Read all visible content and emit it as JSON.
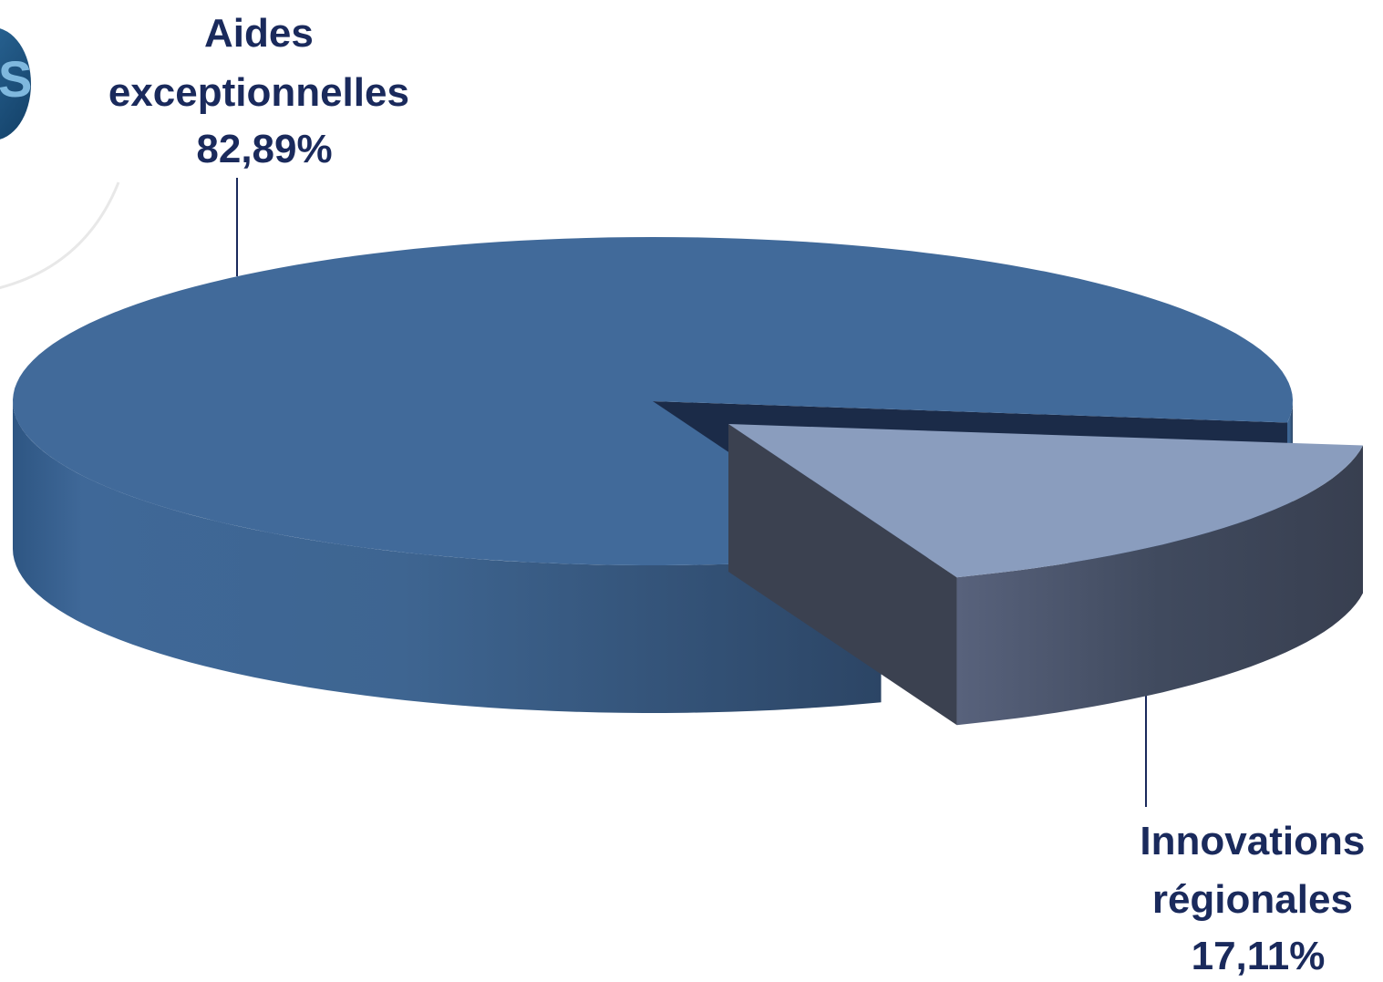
{
  "chart_data": {
    "type": "pie",
    "style": "3d-exploded",
    "slices": [
      {
        "name": "Aides exceptionnelles",
        "label_lines": [
          "Aides",
          "exceptionnelles"
        ],
        "value": 82.89,
        "value_label": "82,89%",
        "color": "#416a9a"
      },
      {
        "name": "Innovations régionales",
        "label_lines": [
          "Innovations",
          "régionales"
        ],
        "value": 17.11,
        "value_label": "17,11%",
        "color": "#8a9dbe"
      }
    ],
    "label_color": "#1a2a5c",
    "legend": "none"
  }
}
